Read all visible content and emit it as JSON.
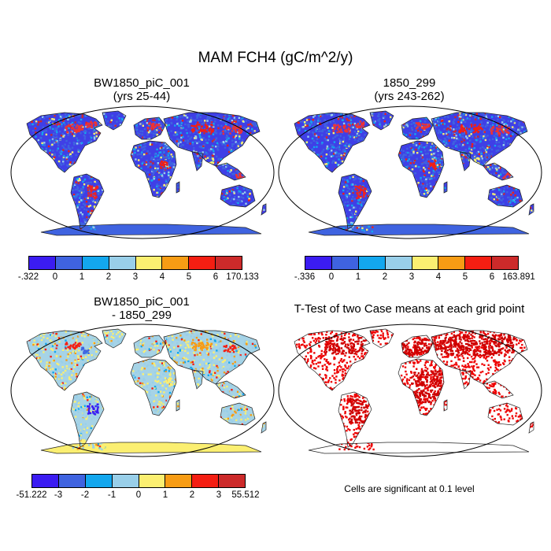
{
  "title": "MAM FCH4 (gC/m^2/y)",
  "panels": {
    "top_left": {
      "title_line1": "BW1850_piC_001",
      "title_line2": "(yrs 25-44)"
    },
    "top_right": {
      "title_line1": "1850_299",
      "title_line2": "(yrs 243-262)"
    },
    "bottom_left": {
      "title_line1": "BW1850_piC_001",
      "title_line2": "- 1850_299"
    },
    "bottom_right": {
      "title_line1": "T-Test of two Case means at each grid point"
    }
  },
  "colorbars": {
    "top_left": {
      "labels": [
        "-.322",
        "0",
        "1",
        "2",
        "3",
        "4",
        "5",
        "6",
        "170.133"
      ]
    },
    "top_right": {
      "labels": [
        "-.336",
        "0",
        "1",
        "2",
        "3",
        "4",
        "5",
        "6",
        "163.891"
      ]
    },
    "bottom_left": {
      "labels": [
        "-51.222",
        "-3",
        "-2",
        "-1",
        "0",
        "1",
        "2",
        "3",
        "55.512"
      ]
    }
  },
  "palette": [
    "#3b1cf2",
    "#3f63e0",
    "#13a7ee",
    "#99cfe9",
    "#fbef71",
    "#f79c14",
    "#f41e12",
    "#cc2a2a"
  ],
  "colors": {
    "land_background_abs": "#3f3fe6",
    "land_background_diff": "#a6d3e6",
    "significance": "#ee0000"
  },
  "note": "Cells are significant at 0.1 level"
}
